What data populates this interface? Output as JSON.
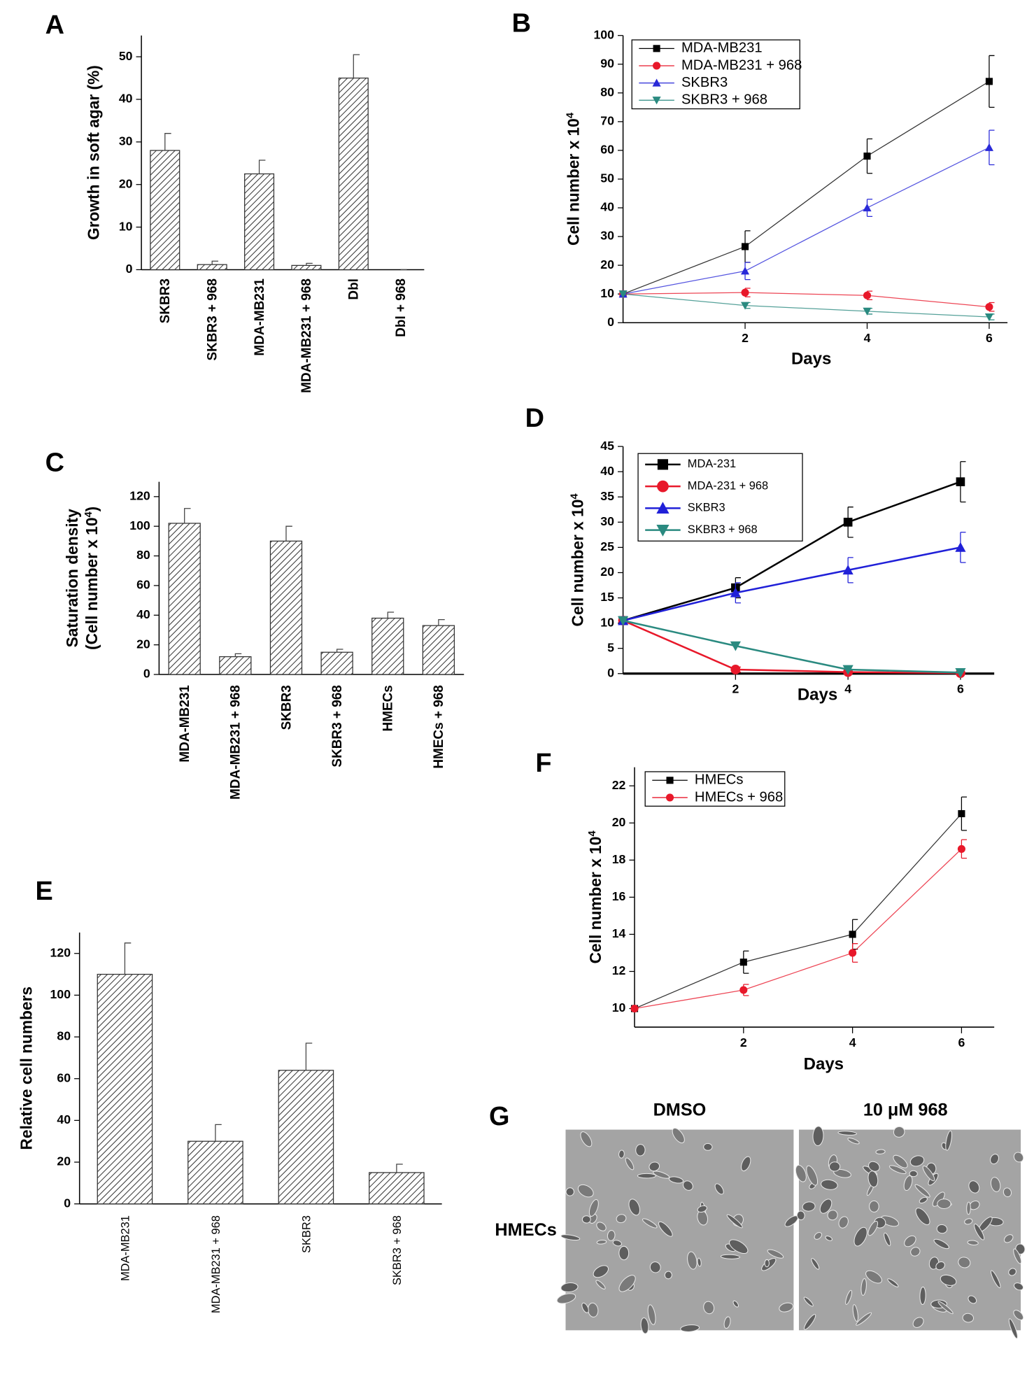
{
  "chart_data": [
    {
      "type": "bar",
      "panel": "A",
      "ylabel": [
        "Growth in soft agar (%)"
      ],
      "categories": [
        "SKBR3",
        "SKBR3 + 968",
        "MDA-MB231",
        "MDA-MB231 + 968",
        "Dbl",
        "Dbl + 968"
      ],
      "values": [
        28,
        1.2,
        22.5,
        1,
        45,
        0
      ],
      "errors": [
        4,
        0.8,
        3.2,
        0.5,
        5.5,
        0
      ],
      "ylim": [
        0,
        55
      ],
      "yticks": [
        0,
        10,
        20,
        30,
        40,
        50
      ]
    },
    {
      "type": "line",
      "panel": "B",
      "xlabel": "Days",
      "ylabel": [
        {
          "text": "Cell number x 10",
          "sup": "4"
        }
      ],
      "x": [
        0,
        2,
        4,
        6
      ],
      "xlim": [
        0,
        6.3
      ],
      "xticks": [
        2,
        4,
        6
      ],
      "ylim": [
        0,
        100
      ],
      "yticks": [
        0,
        10,
        20,
        30,
        40,
        50,
        60,
        70,
        80,
        90,
        100
      ],
      "series": [
        {
          "name": "MDA-MB231",
          "color": "#000000",
          "marker": "square",
          "values": [
            10,
            26.5,
            58,
            84
          ],
          "errors": [
            0,
            5.5,
            6,
            9
          ]
        },
        {
          "name": "MDA-MB231 + 968",
          "color": "#e8182a",
          "marker": "circle",
          "values": [
            10,
            10.5,
            9.5,
            5.5
          ],
          "errors": [
            0,
            1.5,
            1.5,
            1.5
          ]
        },
        {
          "name": "SKBR3",
          "color": "#2a2ad8",
          "marker": "triangle",
          "values": [
            10,
            18,
            40,
            61
          ],
          "errors": [
            0,
            3,
            3,
            6
          ]
        },
        {
          "name": "SKBR3 + 968",
          "color": "#2a8a80",
          "marker": "triangle-down",
          "values": [
            10,
            6,
            4,
            2
          ],
          "errors": [
            0,
            1,
            1,
            1
          ]
        }
      ]
    },
    {
      "type": "bar",
      "panel": "C",
      "ylabel": [
        "Saturation density",
        {
          "text": "(Cell number x 10",
          "sup": "4",
          "tail": ")"
        }
      ],
      "categories": [
        "MDA-MB231",
        "MDA-MB231 + 968",
        "SKBR3",
        "SKBR3 + 968",
        "HMECs",
        "HMECs + 968"
      ],
      "values": [
        102,
        12,
        90,
        15,
        38,
        33
      ],
      "errors": [
        10,
        2,
        10,
        2,
        4,
        4
      ],
      "ylim": [
        0,
        130
      ],
      "yticks": [
        0,
        20,
        40,
        60,
        80,
        100,
        120
      ]
    },
    {
      "type": "line",
      "panel": "D",
      "xlabel": "Days",
      "ylabel": [
        {
          "text": "Cell number x 10",
          "sup": "4"
        }
      ],
      "x": [
        0,
        2,
        4,
        6
      ],
      "xlim": [
        0,
        6.6
      ],
      "xticks": [
        2,
        4,
        6
      ],
      "ylim": [
        0,
        45
      ],
      "yticks": [
        0,
        5,
        10,
        15,
        20,
        25,
        30,
        35,
        40,
        45
      ],
      "series": [
        {
          "name": "MDA-231",
          "color": "#000000",
          "marker": "square",
          "values": [
            10.5,
            17,
            30,
            38
          ],
          "errors": [
            0,
            2,
            3,
            4
          ]
        },
        {
          "name": "MDA-231 + 968",
          "color": "#e8182a",
          "marker": "circle",
          "values": [
            10.5,
            0.8,
            0.3,
            0.1
          ],
          "errors": [
            0,
            0.5,
            0,
            0
          ]
        },
        {
          "name": "SKBR3",
          "color": "#2020d8",
          "marker": "triangle",
          "values": [
            10.5,
            16,
            20.5,
            25
          ],
          "errors": [
            0,
            2,
            2.5,
            3
          ]
        },
        {
          "name": "SKBR3 + 968",
          "color": "#2a8a80",
          "marker": "triangle-down",
          "values": [
            10.5,
            5.5,
            0.8,
            0.2
          ],
          "errors": [
            0,
            0,
            0,
            0
          ]
        }
      ]
    },
    {
      "type": "bar",
      "panel": "E",
      "ylabel": [
        "Relative cell numbers"
      ],
      "categories": [
        "MDA-MB231",
        "MDA-MB231 + 968",
        "SKBR3",
        "SKBR3 + 968"
      ],
      "values": [
        110,
        30,
        64,
        15
      ],
      "errors": [
        15,
        8,
        13,
        4
      ],
      "ylim": [
        0,
        130
      ],
      "yticks": [
        0,
        20,
        40,
        60,
        80,
        100,
        120
      ]
    },
    {
      "type": "line",
      "panel": "F",
      "xlabel": "Days",
      "ylabel": [
        {
          "text": "Cell number x 10",
          "sup": "4"
        }
      ],
      "x": [
        0,
        2,
        4,
        6
      ],
      "xlim": [
        0,
        6.6
      ],
      "xticks": [
        2,
        4,
        6
      ],
      "ylim": [
        9,
        23
      ],
      "yticks": [
        10,
        12,
        14,
        16,
        18,
        20,
        22
      ],
      "series": [
        {
          "name": "HMECs",
          "color": "#000000",
          "marker": "square",
          "values": [
            10,
            12.5,
            14,
            20.5
          ],
          "errors": [
            0,
            0.6,
            0.8,
            0.9
          ]
        },
        {
          "name": "HMECs + 968",
          "color": "#e8182a",
          "marker": "circle",
          "values": [
            10,
            11,
            13,
            18.6
          ],
          "errors": [
            0,
            0.3,
            0.5,
            0.5
          ]
        }
      ]
    },
    {
      "type": "image",
      "panel": "G",
      "columns": [
        "DMSO",
        "10 μM 968"
      ],
      "row_label": "HMECs"
    }
  ]
}
